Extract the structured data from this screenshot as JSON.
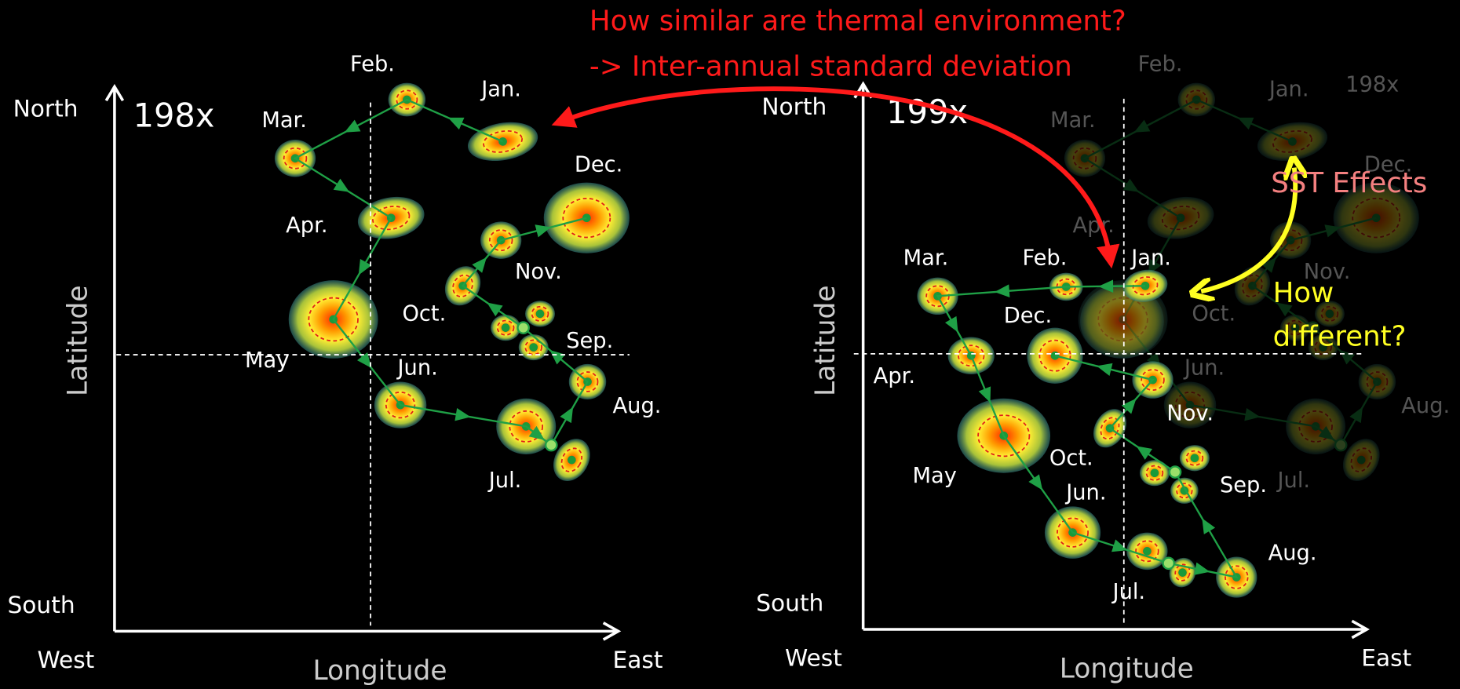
{
  "annotations": {
    "question": "How similar  are thermal environment?",
    "method": "-> Inter-annual standard deviation",
    "sst": "SST Effects",
    "different": [
      "How",
      "different?"
    ]
  },
  "panels": [
    {
      "label": "198x",
      "north": "North",
      "south": "South",
      "west": "West",
      "east": "East",
      "x_label": "Longitude",
      "y_label": "Latitude",
      "months": [
        "Jan.",
        "Feb.",
        "Mar.",
        "Apr.",
        "May",
        "Jun.",
        "Jul.",
        "Aug.",
        "Sep.",
        "Oct.",
        "Nov.",
        "Dec."
      ]
    },
    {
      "label": "199x",
      "north": "North",
      "south": "South",
      "west": "West",
      "east": "East",
      "x_label": "Longitude",
      "y_label": "Latitude",
      "months": [
        "Jan.",
        "Feb.",
        "Mar.",
        "Apr.",
        "May",
        "Jun.",
        "Jul.",
        "Aug.",
        "Sep.",
        "Oct.",
        "Nov.",
        "Dec."
      ]
    }
  ]
}
